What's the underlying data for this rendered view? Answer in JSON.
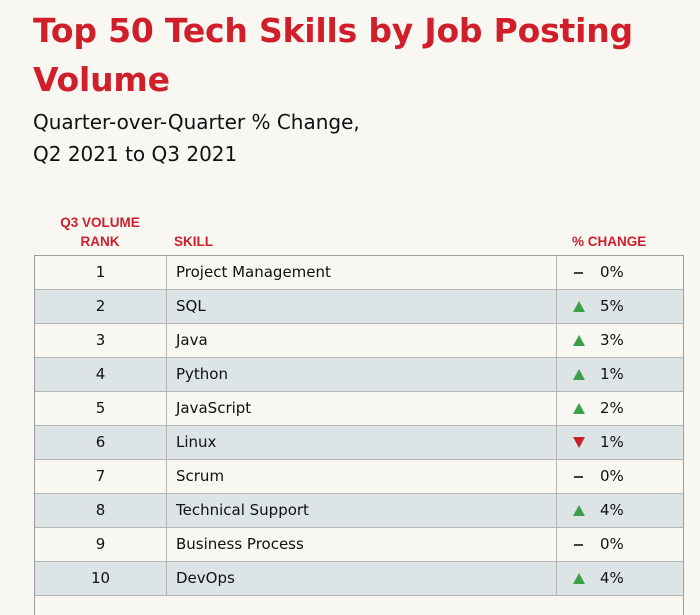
{
  "title": "Top 50 Tech Skills by Job Posting Volume",
  "subtitle_line1": "Quarter-over-Quarter % Change,",
  "subtitle_line2": "Q2 2021 to Q3 2021",
  "headers": {
    "rank": "Q3 VOLUME RANK",
    "skill": "SKILL",
    "change": "% CHANGE"
  },
  "colors": {
    "accent": "#d01f2b",
    "up": "#3aa14a",
    "down": "#c8202a",
    "flat": "#111111",
    "alt_row": "#dce4e6",
    "background": "#f8f7f2"
  },
  "chart_data": {
    "type": "table",
    "title": "Top 50 Tech Skills by Job Posting Volume",
    "subtitle": "Quarter-over-Quarter % Change, Q2 2021 to Q3 2021",
    "columns": [
      "Q3 VOLUME RANK",
      "SKILL",
      "% CHANGE"
    ],
    "rows": [
      {
        "rank": "1",
        "skill": "Project Management",
        "direction": "flat",
        "change": "0%"
      },
      {
        "rank": "2",
        "skill": "SQL",
        "direction": "up",
        "change": "5%"
      },
      {
        "rank": "3",
        "skill": "Java",
        "direction": "up",
        "change": "3%"
      },
      {
        "rank": "4",
        "skill": "Python",
        "direction": "up",
        "change": "1%"
      },
      {
        "rank": "5",
        "skill": "JavaScript",
        "direction": "up",
        "change": "2%"
      },
      {
        "rank": "6",
        "skill": "Linux",
        "direction": "down",
        "change": "1%"
      },
      {
        "rank": "7",
        "skill": "Scrum",
        "direction": "flat",
        "change": "0%"
      },
      {
        "rank": "8",
        "skill": "Technical Support",
        "direction": "up",
        "change": "4%"
      },
      {
        "rank": "9",
        "skill": "Business Process",
        "direction": "flat",
        "change": "0%"
      },
      {
        "rank": "10",
        "skill": "DevOps",
        "direction": "up",
        "change": "4%"
      }
    ]
  }
}
